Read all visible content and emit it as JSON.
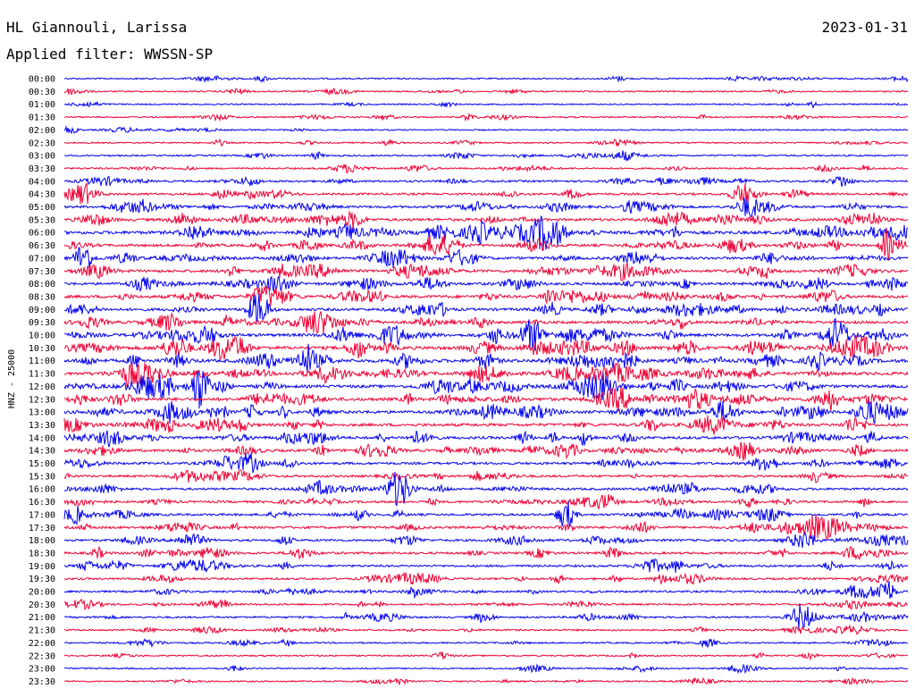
{
  "header": {
    "station": "HL Giannouli, Larissa",
    "date": "2023-01-31",
    "filter": "Applied filter: WWSSN-SP"
  },
  "chart_data": {
    "type": "line",
    "title": "HL Giannouli, Larissa",
    "subtitle": "Applied filter: WWSSN-SP",
    "date": "2023-01-31",
    "ylabel": "HNZ - 25000",
    "xlabel": "",
    "row_labels": [
      "00:00",
      "00:30",
      "01:00",
      "01:30",
      "02:00",
      "02:30",
      "03:00",
      "03:30",
      "04:00",
      "04:30",
      "05:00",
      "05:30",
      "06:00",
      "06:30",
      "07:00",
      "07:30",
      "08:00",
      "08:30",
      "09:00",
      "09:30",
      "10:00",
      "10:30",
      "11:00",
      "11:30",
      "12:00",
      "12:30",
      "13:00",
      "13:30",
      "14:00",
      "14:30",
      "15:00",
      "15:30",
      "16:00",
      "16:30",
      "17:00",
      "17:30",
      "18:00",
      "18:30",
      "19:00",
      "19:30",
      "20:00",
      "20:30",
      "21:00",
      "21:30",
      "22:00",
      "22:30",
      "23:00",
      "23:30"
    ],
    "row_activity": [
      0.1,
      0.1,
      0.08,
      0.1,
      0.08,
      0.1,
      0.15,
      0.2,
      0.3,
      0.35,
      0.45,
      0.55,
      0.7,
      0.5,
      0.5,
      0.55,
      0.55,
      0.6,
      0.55,
      0.55,
      0.65,
      0.75,
      0.75,
      0.7,
      0.65,
      0.7,
      0.65,
      0.6,
      0.55,
      0.5,
      0.45,
      0.4,
      0.4,
      0.4,
      0.4,
      0.45,
      0.4,
      0.4,
      0.35,
      0.3,
      0.3,
      0.25,
      0.25,
      0.2,
      0.15,
      0.12,
      0.12,
      0.12
    ],
    "series": [
      {
        "color": "#0000ee"
      },
      {
        "color": "#ee0033"
      }
    ],
    "grid": false,
    "legend": "none"
  }
}
